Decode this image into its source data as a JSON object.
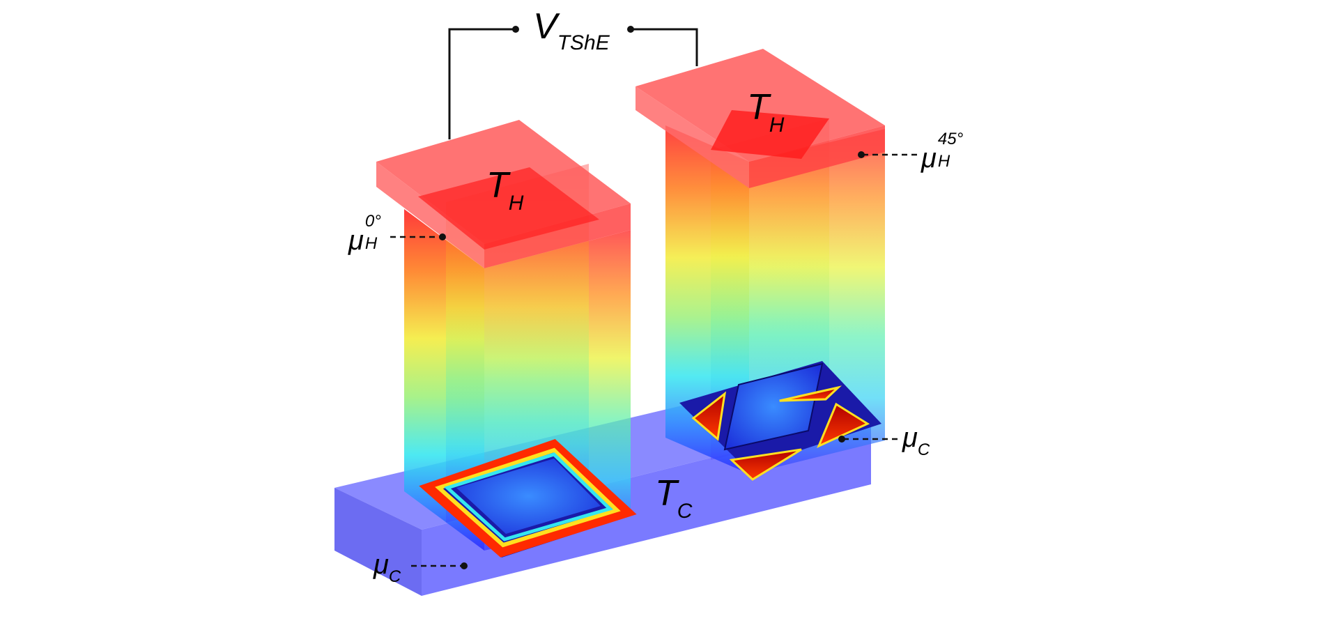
{
  "labels": {
    "voltage": {
      "main": "V",
      "sub": "TShE"
    },
    "hot_left": {
      "main": "T",
      "sub": "H"
    },
    "hot_right": {
      "main": "T",
      "sub": "H"
    },
    "cold": {
      "main": "T",
      "sub": "C"
    },
    "mu_h_0": {
      "main": "μ",
      "sub": "H",
      "sup": "0°"
    },
    "mu_h_45": {
      "main": "μ",
      "sub": "H",
      "sup": "45°"
    },
    "mu_c_right": {
      "main": "μ",
      "sub": "C"
    },
    "mu_c_left": {
      "main": "μ",
      "sub": "C"
    }
  },
  "colors": {
    "hot": "#ff2a2a",
    "cold": "#3b3bff",
    "base": "#6b6bff",
    "wire": "#111111"
  }
}
